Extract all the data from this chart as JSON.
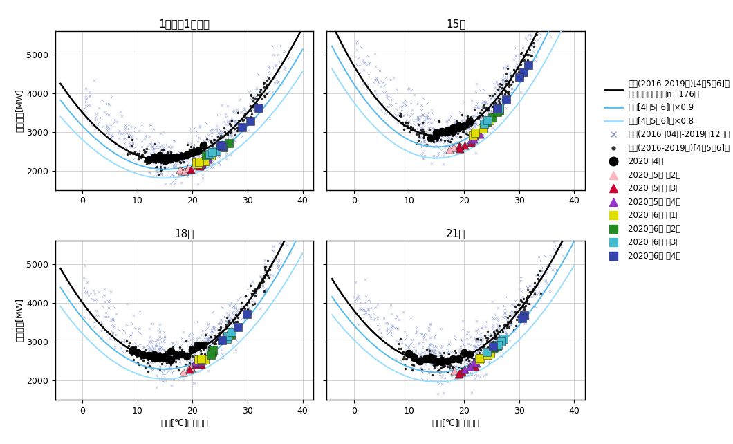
{
  "panels": [
    "1時（前1時間）",
    "15時",
    "18時",
    "21時"
  ],
  "xlim": [
    -5,
    42
  ],
  "ylim": [
    1500,
    5600
  ],
  "yticks": [
    2000,
    3000,
    4000,
    5000
  ],
  "xticks": [
    0,
    10,
    20,
    30,
    40
  ],
  "xlabel": "気温[℃]（松山）",
  "ylabel": "電力需要[MW]",
  "bg_color": "#ffffff",
  "grid_color": "#cccccc",
  "curve_color_black": "#000000",
  "curve_color_blue1": "#55bbee",
  "curve_color_blue2": "#99ddff",
  "scatter_all_color": "#8899cc",
  "scatter_456_color": "#111111",
  "scatter_april2020_color": "#000000",
  "panel_coeffs": {
    "1時（前1時間）": [
      5.5,
      -165,
      3495
    ],
    "15時": [
      8.0,
      -240,
      4700
    ],
    "18時": [
      6.5,
      -195,
      4000
    ],
    "21時": [
      6.0,
      -180,
      3800
    ]
  },
  "weekly_colors": {
    "may_w2": "#ffb6c1",
    "may_w3": "#cc0033",
    "may_w4": "#9932cc",
    "jun_w1": "#dddd00",
    "jun_w2": "#228b22",
    "jun_w3": "#44bbcc",
    "jun_w4": "#3344aa"
  },
  "legend_labels": {
    "black_curve": "過去(2016-2019年)[4，5，6]月\nデータ２次近似（n=176）",
    "blue1_curve": "過去[4，5，6]月×0.9",
    "blue2_curve": "過去[4，5，6]月×0.8",
    "scatter_all": "過去(2016年04月-2019年12月）",
    "scatter_456": "過去(2016-2019年)[4，5，6]月",
    "april2020": "2020年4月",
    "may_w2": "2020年5月 第2週",
    "may_w3": "2020年5月 第3週",
    "may_w4": "2020年5月 第4週",
    "jun_w1": "2020年6月 第1週",
    "jun_w2": "2020年6月 第2週",
    "jun_w3": "2020年6月 第3週",
    "jun_w4": "2020年6月 第4週"
  }
}
